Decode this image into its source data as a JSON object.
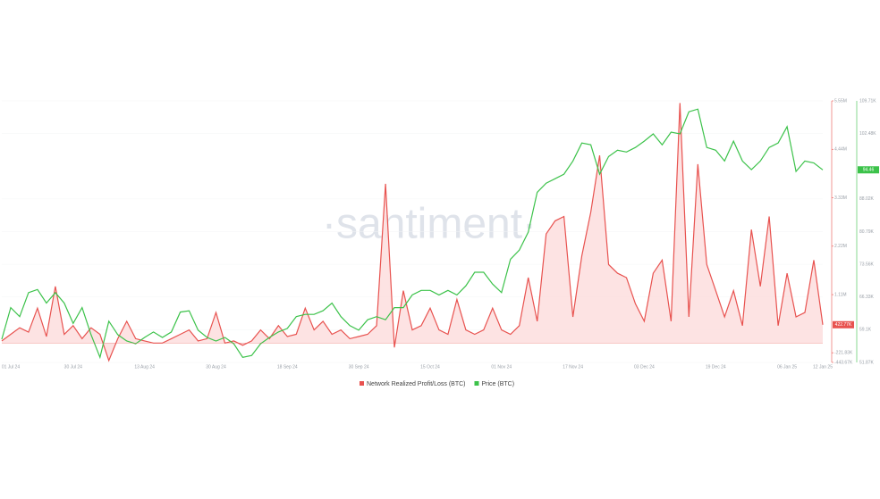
{
  "chart_data": {
    "type": "line",
    "watermark": "·santiment·",
    "categories": [
      null,
      "01 Jul 24",
      null,
      null,
      null,
      null,
      null,
      null,
      "30 Jul 24",
      null,
      null,
      null,
      null,
      null,
      null,
      null,
      "13 Aug 24",
      null,
      null,
      null,
      null,
      null,
      null,
      null,
      "30 Aug 24",
      null,
      null,
      null,
      null,
      null,
      null,
      null,
      "18 Sep 24",
      null,
      null,
      null,
      null,
      null,
      null,
      null,
      "30 Sep 24",
      null,
      null,
      null,
      null,
      null,
      null,
      null,
      "15 Oct 24",
      null,
      null,
      null,
      null,
      null,
      null,
      null,
      "01 Nov 24",
      null,
      null,
      null,
      null,
      null,
      null,
      null,
      "17 Nov 24",
      null,
      null,
      null,
      null,
      null,
      null,
      null,
      "03 Dec 24",
      null,
      null,
      null,
      null,
      null,
      null,
      null,
      "19 Dec 24",
      null,
      null,
      null,
      null,
      null,
      null,
      null,
      "06 Jan 25",
      null,
      null,
      null,
      "12 Jan 25"
    ],
    "series": [
      {
        "name": "Network Realized Profit/Loss (BTC)",
        "color": "#e8524f",
        "fill": "#fde0e0",
        "last_label": "422.77K",
        "values": [
          0.05,
          0.2,
          0.35,
          0.25,
          0.8,
          0.15,
          1.3,
          0.2,
          0.4,
          0.1,
          0.35,
          0.2,
          -0.4,
          0.1,
          0.5,
          0.1,
          0.05,
          0.0,
          0.0,
          0.1,
          0.2,
          0.3,
          0.05,
          0.1,
          0.7,
          0.0,
          0.05,
          -0.05,
          0.05,
          0.3,
          0.1,
          0.4,
          0.15,
          0.2,
          0.8,
          0.3,
          0.5,
          0.2,
          0.3,
          0.1,
          0.15,
          0.2,
          0.4,
          3.65,
          -0.1,
          1.2,
          0.3,
          0.4,
          0.8,
          0.3,
          0.2,
          1.0,
          0.3,
          0.2,
          0.3,
          0.8,
          0.3,
          0.2,
          0.4,
          1.5,
          0.5,
          2.5,
          2.8,
          2.9,
          0.6,
          2.0,
          3.0,
          4.3,
          1.8,
          1.6,
          1.5,
          0.9,
          0.5,
          1.6,
          1.9,
          0.5,
          5.5,
          0.6,
          4.1,
          1.8,
          1.2,
          0.6,
          1.2,
          0.4,
          2.6,
          1.3,
          2.9,
          0.4,
          1.6,
          0.6,
          0.7,
          1.9,
          0.42
        ]
      },
      {
        "name": "Price (BTC)",
        "color": "#3cc24a",
        "axis": "y2",
        "last_label": "94.46",
        "values": [
          57,
          64,
          62,
          67.3,
          68,
          65,
          67.3,
          65,
          60.5,
          64,
          58,
          53,
          61,
          58,
          56.6,
          56,
          57.4,
          58.6,
          57.4,
          58.6,
          63,
          63.3,
          59,
          57.4,
          56.6,
          57.4,
          56,
          53,
          53.4,
          56,
          57.4,
          58.6,
          59.4,
          62,
          62.5,
          62.5,
          63.3,
          65,
          62,
          60,
          59,
          61.3,
          62,
          61.3,
          64,
          64,
          66.8,
          67.8,
          67.8,
          66.8,
          67.8,
          66.8,
          68.8,
          71.8,
          71.8,
          69.2,
          67.3,
          74.7,
          76.7,
          80.7,
          89.5,
          91.5,
          92.5,
          93.5,
          96.4,
          100.4,
          100,
          93.5,
          97.4,
          98.8,
          98.4,
          99.4,
          100.8,
          102.4,
          100,
          102.8,
          102.4,
          107.3,
          107.9,
          99.4,
          98.8,
          96.4,
          100.8,
          96.4,
          94.5,
          96.4,
          99.4,
          100.4,
          104,
          94.1,
          96.4,
          96,
          94.46
        ]
      }
    ],
    "ylim": [
      -0.44367,
      5.55
    ],
    "yticks": [
      {
        "value": -0.44367,
        "label": "-443.67K"
      },
      {
        "value": -0.22183,
        "label": "-221.83K"
      },
      {
        "value": 1.11,
        "label": "1.11M"
      },
      {
        "value": 2.22,
        "label": "2.22M"
      },
      {
        "value": 3.33,
        "label": "3.33M"
      },
      {
        "value": 4.44,
        "label": "4.44M"
      },
      {
        "value": 5.55,
        "label": "5.55M"
      }
    ],
    "y2lim": [
      51.87,
      109.71
    ],
    "y2ticks": [
      {
        "value": 51.87,
        "label": "51.87K"
      },
      {
        "value": 59.1,
        "label": "59.1K"
      },
      {
        "value": 66.33,
        "label": "66.33K"
      },
      {
        "value": 73.56,
        "label": "73.56K"
      },
      {
        "value": 80.79,
        "label": "80.79K"
      },
      {
        "value": 88.02,
        "label": "88.02K"
      },
      {
        "value": 102.48,
        "label": "102.48K"
      },
      {
        "value": 109.71,
        "label": "109.71K"
      }
    ],
    "grid": true
  }
}
